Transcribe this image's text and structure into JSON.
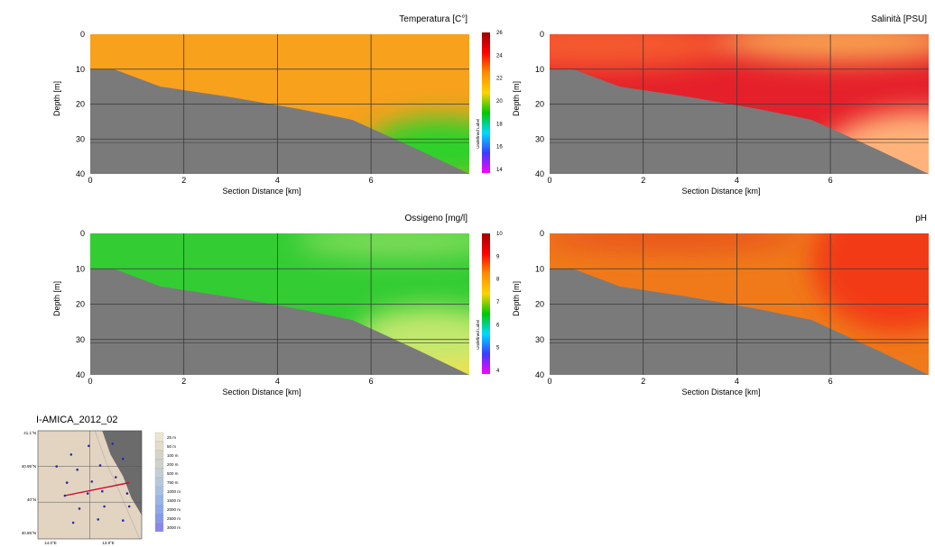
{
  "colorbar_colors": [
    "#ff00ff",
    "#3b3bff",
    "#00d9ff",
    "#00c800",
    "#ffd200",
    "#ff8c00",
    "#ff0000",
    "#a00000"
  ],
  "seafloor_color": "#7a7a7a",
  "chart_data": [
    {
      "id": "temp",
      "type": "heatmap",
      "title": "Temperatura [C°]",
      "xlabel": "Section Distance [km]",
      "ylabel": "Depth [m]",
      "xlim": [
        0,
        8.1
      ],
      "ylim": [
        40,
        0
      ],
      "xticks": [
        "0",
        "2",
        "4",
        "6"
      ],
      "yticks": [
        "0",
        "10",
        "20",
        "30",
        "40"
      ],
      "colorbar": {
        "labels": [
          "26",
          "24",
          "22",
          "20",
          "18",
          "16",
          "14"
        ],
        "side_label": "Undefined Label"
      },
      "seafloor": {
        "x": [
          0,
          0.5,
          1.5,
          3,
          4.5,
          5.6,
          7,
          8.1
        ],
        "depth": [
          10,
          10,
          15,
          18,
          21.5,
          24.5,
          33,
          40
        ]
      },
      "field": {
        "base_color": "#f7a11d",
        "patches": [
          {
            "x": 7.5,
            "depth": 33,
            "rx": 1.6,
            "ry": 9,
            "color": "#2fd12c"
          }
        ]
      }
    },
    {
      "id": "sal",
      "type": "heatmap",
      "title": "Salinità [PSU]",
      "xlabel": "Section Distance [km]",
      "ylabel": "Depth [m]",
      "xlim": [
        0,
        8.1
      ],
      "ylim": [
        40,
        0
      ],
      "xticks": [
        "0",
        "2",
        "4",
        "6"
      ],
      "yticks": [
        "0",
        "10",
        "20",
        "30",
        "40"
      ],
      "seafloor": {
        "x": [
          0,
          0.5,
          1.5,
          3,
          4.5,
          5.6,
          7,
          8.1
        ],
        "depth": [
          10,
          10,
          15,
          18,
          21.5,
          24.5,
          33,
          40
        ]
      },
      "field": {
        "base_color": "#e5202a",
        "patches": [
          {
            "x": 1,
            "depth": 3,
            "rx": 3,
            "ry": 7,
            "color": "#f55a2e"
          },
          {
            "x": 6.2,
            "depth": 2,
            "rx": 2.6,
            "ry": 6,
            "color": "#f7a050"
          },
          {
            "x": 7.9,
            "depth": 38,
            "rx": 2.2,
            "ry": 16,
            "color": "#ffb37a"
          }
        ]
      }
    },
    {
      "id": "oxy",
      "type": "heatmap",
      "title": "Ossigeno [mg/l]",
      "xlabel": "Section Distance [km]",
      "ylabel": "Depth [m]",
      "xlim": [
        0,
        8.1
      ],
      "ylim": [
        40,
        0
      ],
      "xticks": [
        "0",
        "2",
        "4",
        "6"
      ],
      "yticks": [
        "0",
        "10",
        "20",
        "30",
        "40"
      ],
      "colorbar": {
        "labels": [
          "10",
          "9",
          "8",
          "7",
          "6",
          "5",
          "4"
        ],
        "side_label": "Undefined Label"
      },
      "seafloor": {
        "x": [
          0,
          0.5,
          1.5,
          3,
          4.5,
          5.6,
          7,
          8.1
        ],
        "depth": [
          10,
          10,
          15,
          18,
          21.5,
          24.5,
          33,
          40
        ]
      },
      "field": {
        "base_color": "#33cc33",
        "patches": [
          {
            "x": 7.8,
            "depth": 39,
            "rx": 1.5,
            "ry": 7,
            "color": "#f2e14a"
          },
          {
            "x": 7.3,
            "depth": 29,
            "rx": 1.6,
            "ry": 8,
            "color": "#c2e86e"
          },
          {
            "x": 6.6,
            "depth": 2,
            "rx": 2.2,
            "ry": 5,
            "color": "#7fdc5a"
          }
        ]
      }
    },
    {
      "id": "ph",
      "type": "heatmap",
      "title": "pH",
      "xlabel": "Section Distance [km]",
      "ylabel": "Depth [m]",
      "xlim": [
        0,
        8.1
      ],
      "ylim": [
        40,
        0
      ],
      "xticks": [
        "0",
        "2",
        "4",
        "6"
      ],
      "yticks": [
        "0",
        "10",
        "20",
        "30",
        "40"
      ],
      "seafloor": {
        "x": [
          0,
          0.5,
          1.5,
          3,
          4.5,
          5.6,
          7,
          8.1
        ],
        "depth": [
          10,
          10,
          15,
          18,
          21.5,
          24.5,
          33,
          40
        ]
      },
      "field": {
        "base_color": "#f07a1a",
        "patches": [
          {
            "x": 7.4,
            "depth": 8,
            "rx": 1.8,
            "ry": 20,
            "color": "#f23a14"
          },
          {
            "x": 2.6,
            "depth": 1,
            "rx": 2.8,
            "ry": 4,
            "color": "#e8531a"
          }
        ]
      }
    }
  ],
  "map": {
    "title": "I-AMICA_2012_02",
    "lat_labels": [
      "41.1°N",
      "40.95°N",
      "40°N",
      "40.85°N"
    ],
    "lon_labels": [
      "14.0°E",
      "13.9°E"
    ],
    "legend": [
      "25 m",
      "50 m",
      "100 m",
      "200 m",
      "500 m",
      "750 m",
      "1000 m",
      "1500 m",
      "2000 m",
      "2500 m",
      "3000 m"
    ],
    "legend_colors": [
      "#ece4d2",
      "#e2dccb",
      "#d7d3c6",
      "#cfd2cc",
      "#c3cfd6",
      "#b6c9dc",
      "#a8c1e2",
      "#99b6e6",
      "#8ea8ea",
      "#8898ea",
      "#8a86ec"
    ],
    "land_color": "#6b6b6b",
    "sea_color": "#e3d4c2",
    "stations": [
      {
        "lon": 0.32,
        "lat": 0.78
      },
      {
        "lon": 0.49,
        "lat": 0.86
      },
      {
        "lon": 0.72,
        "lat": 0.88
      },
      {
        "lon": 0.18,
        "lat": 0.67
      },
      {
        "lon": 0.38,
        "lat": 0.64
      },
      {
        "lon": 0.6,
        "lat": 0.68
      },
      {
        "lon": 0.82,
        "lat": 0.74
      },
      {
        "lon": 0.28,
        "lat": 0.52
      },
      {
        "lon": 0.52,
        "lat": 0.53
      },
      {
        "lon": 0.75,
        "lat": 0.57
      },
      {
        "lon": 0.26,
        "lat": 0.4
      },
      {
        "lon": 0.48,
        "lat": 0.42
      },
      {
        "lon": 0.62,
        "lat": 0.44
      },
      {
        "lon": 0.86,
        "lat": 0.42
      },
      {
        "lon": 0.4,
        "lat": 0.28
      },
      {
        "lon": 0.64,
        "lat": 0.3
      },
      {
        "lon": 0.88,
        "lat": 0.3
      },
      {
        "lon": 0.34,
        "lat": 0.15
      },
      {
        "lon": 0.58,
        "lat": 0.18
      },
      {
        "lon": 0.82,
        "lat": 0.17
      }
    ],
    "transect": [
      {
        "lon": 0.26,
        "lat": 0.4
      },
      {
        "lon": 0.88,
        "lat": 0.52
      }
    ]
  }
}
